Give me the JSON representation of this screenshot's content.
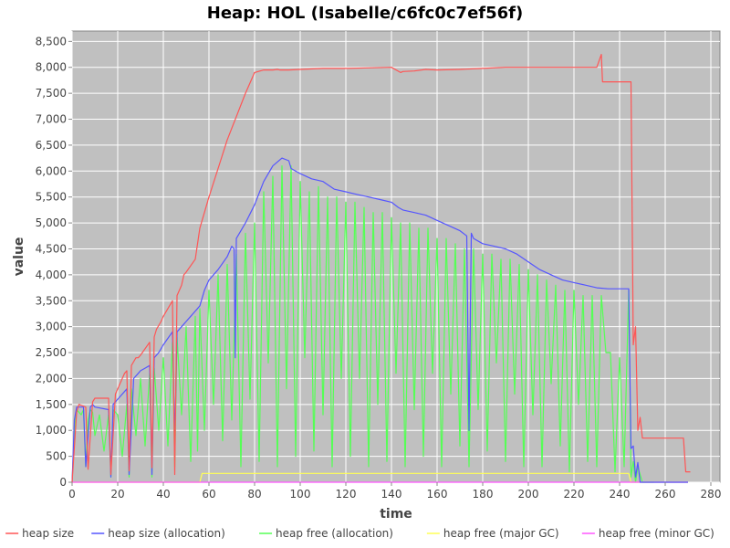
{
  "chart_data": {
    "type": "line",
    "title": "Heap: HOL (Isabelle/c6fc0c7ef56f)",
    "xlabel": "time",
    "ylabel": "value",
    "xlim": [
      0,
      284
    ],
    "ylim": [
      0,
      8700
    ],
    "x_ticks": [
      0,
      20,
      40,
      60,
      80,
      100,
      120,
      140,
      160,
      180,
      200,
      220,
      240,
      260,
      280
    ],
    "y_ticks": [
      0,
      500,
      1000,
      1500,
      2000,
      2500,
      3000,
      3500,
      4000,
      4500,
      5000,
      5500,
      6000,
      6500,
      7000,
      7500,
      8000,
      8500
    ],
    "x_tick_labels": [
      "0",
      "20",
      "40",
      "60",
      "80",
      "100",
      "120",
      "140",
      "160",
      "180",
      "200",
      "220",
      "240",
      "260",
      "280"
    ],
    "y_tick_labels": [
      "0",
      "500",
      "1,000",
      "1,500",
      "2,000",
      "2,500",
      "3,000",
      "3,500",
      "4,000",
      "4,500",
      "5,000",
      "5,500",
      "6,000",
      "6,500",
      "7,000",
      "7,500",
      "8,000",
      "8,500"
    ],
    "grid": true,
    "legend_position": "bottom",
    "plot_background": "#c0c0c0",
    "series": [
      {
        "name": "heap size",
        "color": "#ff5555",
        "x": [
          0,
          2,
          3,
          6,
          7,
          9,
          10,
          16,
          17,
          19,
          20,
          23,
          24,
          25,
          26,
          28,
          29,
          30,
          34,
          35,
          36,
          37,
          39,
          40,
          44,
          45,
          46,
          48,
          49,
          50,
          54,
          55,
          56,
          60,
          64,
          68,
          72,
          76,
          80,
          84,
          88,
          90,
          91,
          95,
          100,
          110,
          120,
          130,
          140,
          144,
          145,
          150,
          155,
          160,
          170,
          180,
          190,
          200,
          210,
          220,
          230,
          232,
          232.5,
          233,
          245,
          246,
          247,
          248,
          249,
          250,
          255,
          260,
          265,
          268,
          269,
          271
        ],
        "y": [
          0,
          1350,
          1500,
          1450,
          250,
          1550,
          1620,
          1620,
          150,
          1700,
          1800,
          2100,
          2150,
          220,
          2250,
          2400,
          2400,
          2450,
          2700,
          280,
          2800,
          2950,
          3100,
          3200,
          3500,
          150,
          3600,
          3800,
          4000,
          4050,
          4300,
          4600,
          4900,
          5500,
          6050,
          6600,
          7050,
          7500,
          7900,
          7950,
          7950,
          7960,
          7950,
          7950,
          7960,
          7980,
          7980,
          7990,
          8000,
          7900,
          7920,
          7930,
          7960,
          7950,
          7960,
          7980,
          8000,
          8000,
          8000,
          8000,
          8000,
          8250,
          7720,
          7720,
          7720,
          2650,
          3000,
          1000,
          1250,
          850,
          850,
          850,
          850,
          850,
          200,
          200
        ]
      },
      {
        "name": "heap size (allocation)",
        "color": "#5555ff",
        "x": [
          0,
          1,
          2,
          5,
          6,
          8,
          9,
          10,
          16,
          17,
          18,
          20,
          24,
          25,
          27,
          29,
          30,
          32,
          34,
          35,
          36,
          38,
          40,
          44,
          45,
          46,
          48,
          49,
          50,
          52,
          54,
          55,
          56,
          58,
          60,
          64,
          68,
          70,
          71,
          71.5,
          72,
          76,
          80,
          84,
          88,
          92,
          95,
          96,
          100,
          105,
          110,
          115,
          120,
          125,
          130,
          135,
          140,
          143,
          145,
          150,
          155,
          160,
          165,
          170,
          173,
          174,
          175,
          176,
          180,
          185,
          190,
          195,
          200,
          205,
          210,
          215,
          220,
          225,
          230,
          235,
          240,
          244,
          245,
          246,
          247,
          248,
          249,
          250,
          260,
          265,
          270
        ],
        "y": [
          0,
          1200,
          1450,
          1450,
          300,
          1450,
          1500,
          1450,
          1400,
          100,
          1500,
          1600,
          1800,
          150,
          2000,
          2100,
          2150,
          2200,
          2250,
          150,
          2400,
          2500,
          2650,
          2900,
          800,
          2900,
          3000,
          3050,
          3100,
          3200,
          3300,
          3350,
          3400,
          3700,
          3900,
          4100,
          4350,
          4550,
          4500,
          2400,
          4700,
          5000,
          5350,
          5800,
          6100,
          6250,
          6200,
          6050,
          5950,
          5850,
          5800,
          5650,
          5600,
          5550,
          5500,
          5450,
          5400,
          5300,
          5250,
          5200,
          5150,
          5050,
          4950,
          4850,
          4750,
          1000,
          4800,
          4700,
          4600,
          4550,
          4500,
          4400,
          4250,
          4100,
          4000,
          3900,
          3850,
          3800,
          3750,
          3730,
          3730,
          3730,
          650,
          700,
          100,
          380,
          0,
          0,
          0,
          0,
          0
        ]
      },
      {
        "name": "heap free (allocation)",
        "color": "#55ff55",
        "x": [
          0,
          1,
          2,
          4,
          5,
          6,
          7,
          8,
          9,
          10,
          12,
          14,
          16,
          17,
          18,
          20,
          22,
          24,
          25,
          26,
          28,
          30,
          32,
          34,
          35,
          36,
          38,
          40,
          42,
          44,
          45,
          46,
          48,
          50,
          52,
          54,
          55,
          56,
          58,
          60,
          62,
          64,
          66,
          68,
          70,
          72,
          74,
          76,
          78,
          80,
          82,
          84,
          86,
          88,
          90,
          92,
          94,
          96,
          98,
          100,
          102,
          104,
          106,
          108,
          110,
          112,
          114,
          116,
          118,
          120,
          122,
          124,
          126,
          128,
          130,
          132,
          134,
          136,
          138,
          140,
          142,
          144,
          146,
          148,
          150,
          152,
          154,
          156,
          158,
          160,
          162,
          164,
          166,
          168,
          170,
          172,
          174,
          176,
          178,
          180,
          182,
          184,
          186,
          188,
          190,
          192,
          194,
          196,
          198,
          200,
          202,
          204,
          206,
          208,
          210,
          212,
          214,
          216,
          218,
          220,
          222,
          224,
          226,
          228,
          230,
          232,
          234,
          236,
          238,
          240,
          242,
          244,
          245,
          246,
          247,
          248,
          250,
          255
        ],
        "y": [
          0,
          1000,
          1400,
          1300,
          1400,
          300,
          1200,
          1400,
          1350,
          900,
          1300,
          600,
          1300,
          100,
          1400,
          1300,
          500,
          1500,
          100,
          1800,
          900,
          2000,
          700,
          2100,
          100,
          2200,
          1000,
          2400,
          700,
          2700,
          300,
          2800,
          1300,
          3000,
          400,
          3200,
          600,
          3350,
          1000,
          3700,
          1500,
          4000,
          800,
          4200,
          1200,
          4400,
          300,
          4800,
          1600,
          5000,
          400,
          5600,
          2300,
          5900,
          300,
          6100,
          1800,
          6100,
          500,
          5800,
          2400,
          5600,
          600,
          5700,
          1300,
          5500,
          300,
          5500,
          2000,
          5400,
          500,
          5400,
          2000,
          5300,
          300,
          5200,
          1500,
          5200,
          400,
          5100,
          2100,
          5000,
          300,
          5000,
          1400,
          4900,
          500,
          4900,
          2100,
          4700,
          300,
          4700,
          1700,
          4600,
          700,
          4500,
          300,
          4500,
          1400,
          4400,
          600,
          4400,
          2300,
          4300,
          400,
          4300,
          1700,
          4200,
          300,
          4100,
          1300,
          4000,
          300,
          3900,
          1900,
          3800,
          700,
          3700,
          200,
          3700,
          1500,
          3600,
          400,
          3600,
          300,
          3600,
          2500,
          2500,
          200,
          2400,
          300,
          3700,
          100,
          400,
          0,
          300,
          0,
          0
        ]
      },
      {
        "name": "heap free (major GC)",
        "color": "#ffff55",
        "x": [
          0,
          56,
          57,
          244,
          245,
          270
        ],
        "y": [
          0,
          0,
          170,
          170,
          0,
          0
        ]
      },
      {
        "name": "heap free (minor GC)",
        "color": "#ff55ff",
        "x": [
          0,
          270
        ],
        "y": [
          0,
          0
        ]
      }
    ]
  }
}
